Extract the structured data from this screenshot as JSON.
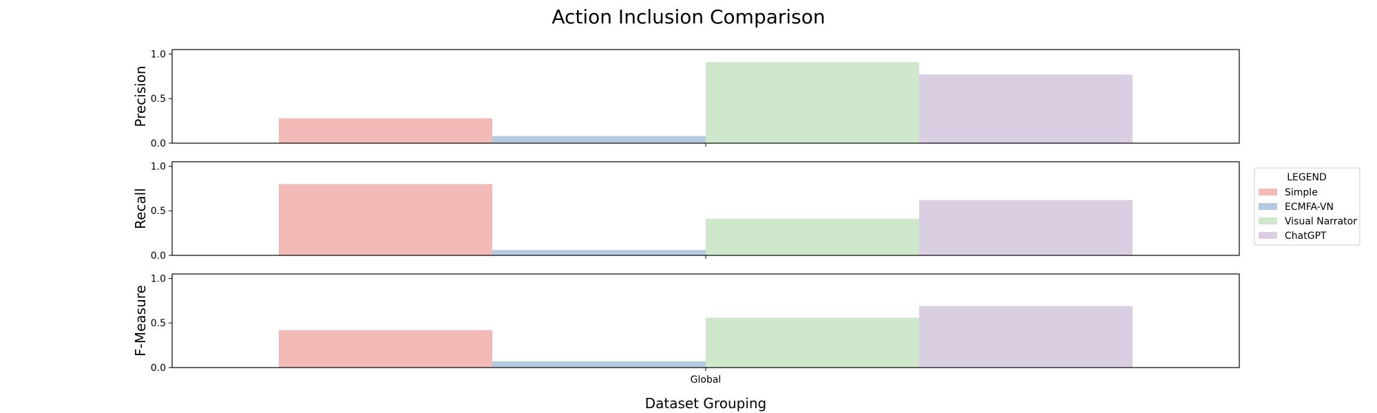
{
  "chart_data": {
    "type": "bar",
    "title": "Action Inclusion Comparison",
    "xlabel": "Dataset Grouping",
    "categories": [
      "Global"
    ],
    "legend": {
      "title": "LEGEND",
      "placement": "right",
      "entries": [
        "Simple",
        "ECMFA-VN",
        "Visual Narrator",
        "ChatGPT"
      ]
    },
    "series_colors": {
      "Simple": "#f2bbb8",
      "ECMFA-VN": "#b3cae0",
      "Visual Narrator": "#cfe7cb",
      "ChatGPT": "#dacee3"
    },
    "ylim": [
      0,
      1.05
    ],
    "yticks": [
      "0.0",
      "0.5",
      "1.0"
    ],
    "panels": [
      {
        "ylabel": "Precision",
        "series": [
          {
            "name": "Simple",
            "values": [
              0.28
            ]
          },
          {
            "name": "ECMFA-VN",
            "values": [
              0.08
            ]
          },
          {
            "name": "Visual Narrator",
            "values": [
              0.91
            ]
          },
          {
            "name": "ChatGPT",
            "values": [
              0.77
            ]
          }
        ]
      },
      {
        "ylabel": "Recall",
        "series": [
          {
            "name": "Simple",
            "values": [
              0.8
            ]
          },
          {
            "name": "ECMFA-VN",
            "values": [
              0.06
            ]
          },
          {
            "name": "Visual Narrator",
            "values": [
              0.41
            ]
          },
          {
            "name": "ChatGPT",
            "values": [
              0.62
            ]
          }
        ]
      },
      {
        "ylabel": "F-Measure",
        "series": [
          {
            "name": "Simple",
            "values": [
              0.42
            ]
          },
          {
            "name": "ECMFA-VN",
            "values": [
              0.07
            ]
          },
          {
            "name": "Visual Narrator",
            "values": [
              0.56
            ]
          },
          {
            "name": "ChatGPT",
            "values": [
              0.69
            ]
          }
        ]
      }
    ]
  }
}
